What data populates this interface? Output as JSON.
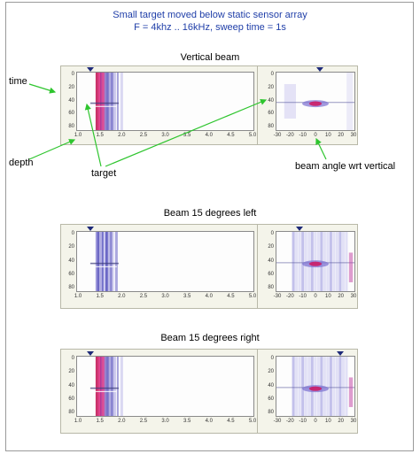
{
  "figure": {
    "title_line1": "Small target moved below static sensor array",
    "title_line2": "F = 4khz .. 16kHz, sweep time = 1s"
  },
  "annotations": {
    "time": "time",
    "depth": "depth",
    "target": "target",
    "beam_angle": "beam angle wrt vertical"
  },
  "colors": {
    "title": "#1f3ea8",
    "arrow": "#2ec52e",
    "intensity_low": "#c9cdf0",
    "intensity_high": "#d0155f"
  },
  "panels": [
    {
      "heading": "Vertical beam",
      "beam_angle_deg": 0
    },
    {
      "heading": "Beam 15 degrees left",
      "beam_angle_deg": -15
    },
    {
      "heading": "Beam 15 degrees right",
      "beam_angle_deg": 15
    }
  ],
  "axes": {
    "time_ticks": [
      "0",
      "20",
      "40",
      "60",
      "80"
    ],
    "depth_ticks": [
      "1.0",
      "1.5",
      "2.0",
      "2.5",
      "3.0",
      "3.5",
      "4.0",
      "4.5",
      "5.0"
    ],
    "depth_ticks_short": [
      "1.0",
      "1.5",
      "2.0",
      "2.5",
      "3.0",
      "3.5",
      "4.0",
      "4.5",
      "5.0"
    ],
    "angle_ticks": [
      "-30",
      "-20",
      "-10",
      "0",
      "10",
      "20",
      "30"
    ]
  }
}
